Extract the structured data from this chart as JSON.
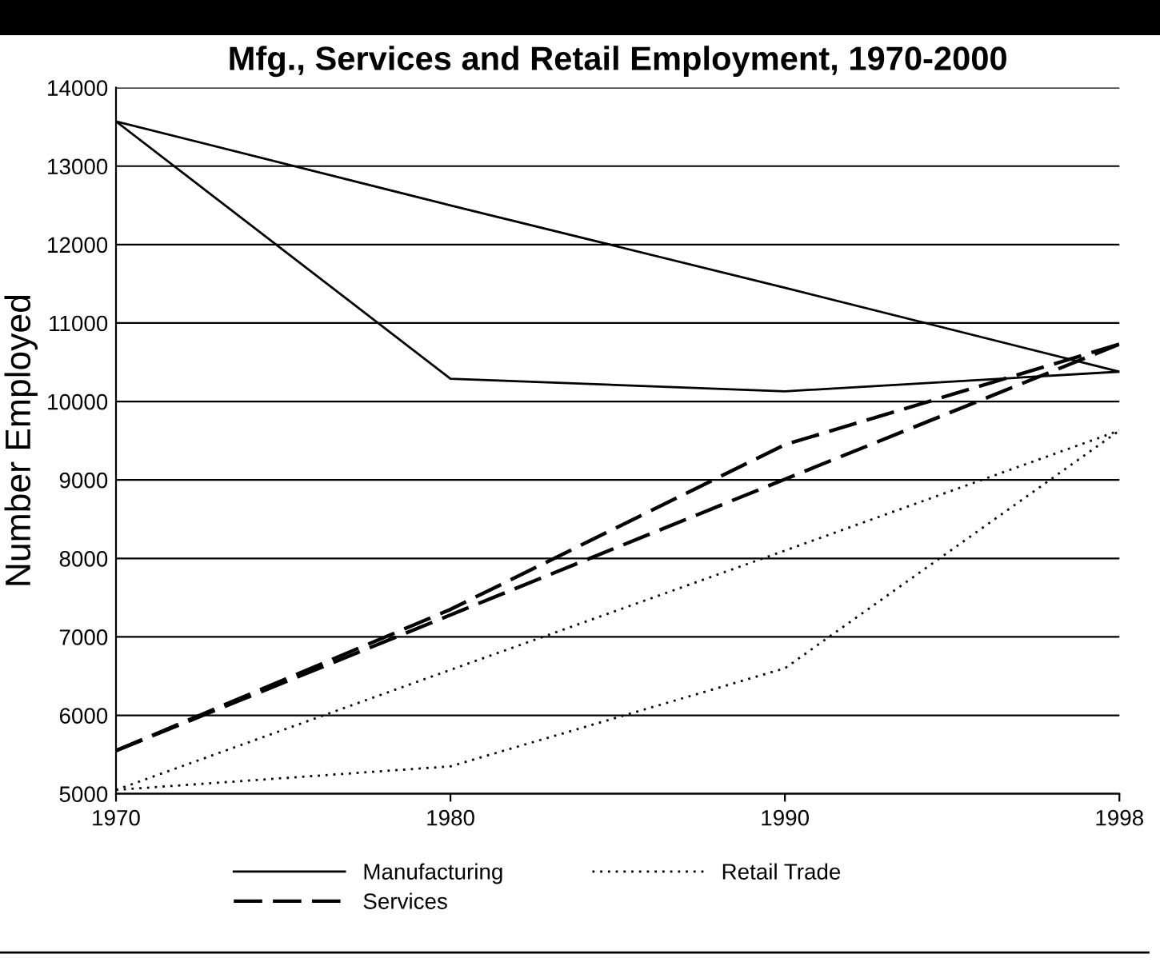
{
  "chart_data": {
    "type": "line",
    "title": "Mfg., Services and Retail Employment, 1970-2000",
    "ylabel": "Number Employed",
    "categories": [
      "1970",
      "1980",
      "1990",
      "1998"
    ],
    "series": [
      {
        "name": "Manufacturing",
        "color": "#000000",
        "line_style": "solid",
        "values": [
          13570,
          10290,
          10130,
          10380
        ]
      },
      {
        "color": "#000000",
        "line_style": "solid",
        "values": [
          13570,
          12500,
          11450,
          10380
        ]
      },
      {
        "name": "Services",
        "color": "#000000",
        "line_style": "dashed",
        "values": [
          5550,
          7350,
          9450,
          10730
        ]
      },
      {
        "color": "#000000",
        "line_style": "dashed",
        "values": [
          5550,
          7280,
          9010,
          10730
        ]
      },
      {
        "name": "Retail Trade",
        "color": "#000000",
        "line_style": "dotted",
        "values": [
          5050,
          5350,
          6600,
          9630
        ]
      },
      {
        "color": "#000000",
        "line_style": "dotted",
        "values": [
          5050,
          6580,
          8100,
          9630
        ]
      }
    ],
    "ylim": [
      5000,
      14000
    ],
    "yticks": [
      5000,
      6000,
      7000,
      8000,
      9000,
      10000,
      11000,
      12000,
      13000,
      14000
    ],
    "grid": "y",
    "legend": "bottom"
  }
}
